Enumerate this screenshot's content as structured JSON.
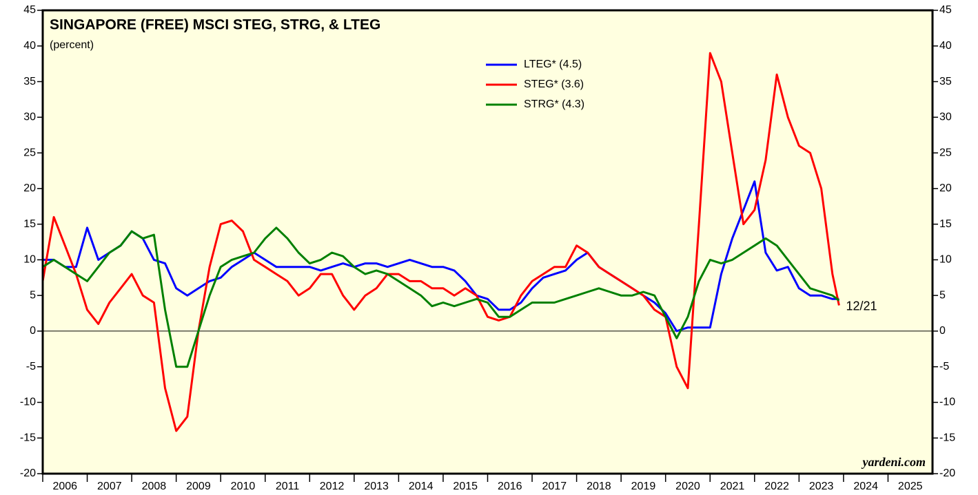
{
  "chart_data": {
    "type": "line",
    "title": "SINGAPORE (FREE) MSCI STEG, STRG, & LTEG",
    "subtitle": "(percent)",
    "annotation": "12/21",
    "annotation_color": "#ff0000",
    "source": "yardeni.com",
    "background": "#ffffe0",
    "legend": "top-center",
    "x": [
      2006,
      2006.25,
      2006.5,
      2006.75,
      2007,
      2007.25,
      2007.5,
      2007.75,
      2008,
      2008.25,
      2008.5,
      2008.75,
      2009,
      2009.25,
      2009.5,
      2009.75,
      2010,
      2010.25,
      2010.5,
      2010.75,
      2011,
      2011.25,
      2011.5,
      2011.75,
      2012,
      2012.25,
      2012.5,
      2012.75,
      2013,
      2013.25,
      2013.5,
      2013.75,
      2014,
      2014.25,
      2014.5,
      2014.75,
      2015,
      2015.25,
      2015.5,
      2015.75,
      2016,
      2016.25,
      2016.5,
      2016.75,
      2017,
      2017.25,
      2017.5,
      2017.75,
      2018,
      2018.25,
      2018.5,
      2018.75,
      2019,
      2019.25,
      2019.5,
      2019.75,
      2020,
      2020.25,
      2020.5,
      2020.75,
      2021,
      2021.25,
      2021.5,
      2021.75,
      2022,
      2022.25,
      2022.5,
      2022.75,
      2023,
      2023.25,
      2023.5,
      2023.75,
      2023.9
    ],
    "series": [
      {
        "name": "LTEG* (4.5)",
        "color": "#0000ff",
        "values": [
          10,
          10,
          9,
          9,
          14.5,
          10,
          11,
          12,
          14,
          13,
          10,
          9.5,
          6,
          5,
          6,
          7,
          7.5,
          9,
          10,
          11,
          10,
          9,
          9,
          9,
          9,
          8.5,
          9,
          9.5,
          9,
          9.5,
          9.5,
          9,
          9.5,
          10,
          9.5,
          9,
          9,
          8.5,
          7,
          5,
          4.5,
          3,
          3,
          4,
          6,
          7.5,
          8,
          8.5,
          10,
          11,
          9,
          8,
          7,
          6,
          5,
          4,
          2.5,
          0,
          0.5,
          0.5,
          0.5,
          8,
          13,
          17,
          21,
          11,
          8.5,
          9,
          6,
          5,
          5,
          4.5,
          4.5
        ]
      },
      {
        "name": "STEG* (3.6)",
        "color": "#ff0000",
        "values": [
          7,
          16,
          12,
          8,
          3,
          1,
          4,
          6,
          8,
          5,
          4,
          -8,
          -14,
          -12,
          0,
          9,
          15,
          15.5,
          14,
          10,
          9,
          8,
          7,
          5,
          6,
          8,
          8,
          5,
          3,
          5,
          6,
          8,
          8,
          7,
          7,
          6,
          6,
          5,
          6,
          5,
          2,
          1.5,
          2,
          5,
          7,
          8,
          9,
          9,
          12,
          11,
          9,
          8,
          7,
          6,
          5,
          3,
          2,
          -5,
          -8,
          15,
          39,
          35,
          25,
          15,
          17,
          24,
          36,
          30,
          26,
          25,
          20,
          8,
          3.6
        ]
      },
      {
        "name": "STRG* (4.3)",
        "color": "#008000",
        "values": [
          9,
          10,
          9,
          8,
          7,
          9,
          11,
          12,
          14,
          13,
          13.5,
          3,
          -5,
          -5,
          0,
          5,
          9,
          10,
          10.5,
          11,
          13,
          14.5,
          13,
          11,
          9.5,
          10,
          11,
          10.5,
          9,
          8,
          8.5,
          8,
          7,
          6,
          5,
          3.5,
          4,
          3.5,
          4,
          4.5,
          4,
          2,
          2,
          3,
          4,
          4,
          4,
          4.5,
          5,
          5.5,
          6,
          5.5,
          5,
          5,
          5.5,
          5,
          2,
          -1,
          2,
          7,
          10,
          9.5,
          10,
          11,
          12,
          13,
          12,
          10,
          8,
          6,
          5.5,
          5,
          4.3
        ]
      }
    ],
    "xlim": [
      2006,
      2026
    ],
    "xticks": [
      2006,
      2007,
      2008,
      2009,
      2010,
      2011,
      2012,
      2013,
      2014,
      2015,
      2016,
      2017,
      2018,
      2019,
      2020,
      2021,
      2022,
      2023,
      2024,
      2025
    ],
    "ylim": [
      -20,
      45
    ],
    "yticks": [
      -20,
      -15,
      -10,
      -5,
      0,
      5,
      10,
      15,
      20,
      25,
      30,
      35,
      40,
      45
    ],
    "zero_line": true
  }
}
